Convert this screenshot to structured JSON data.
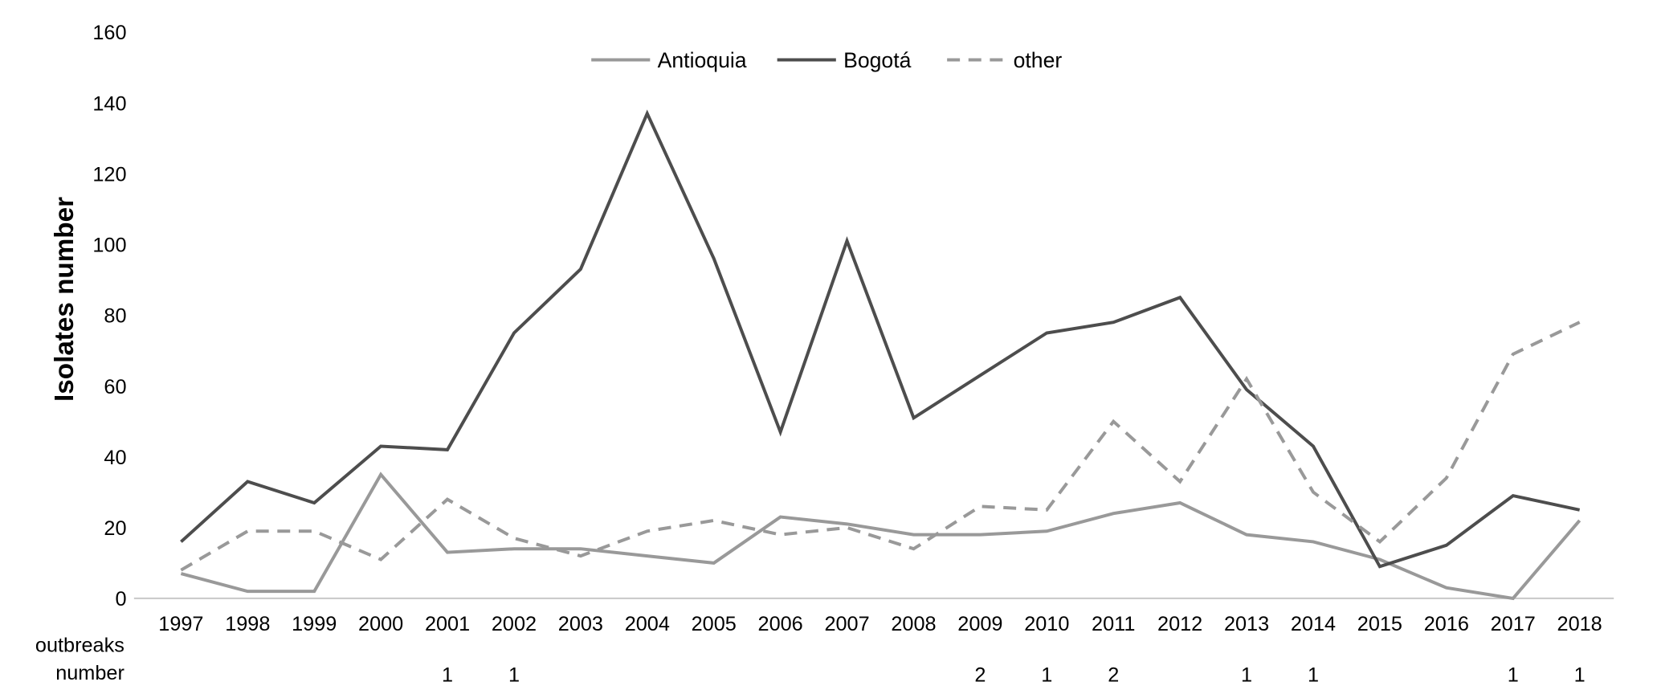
{
  "chart_data": {
    "type": "line",
    "title": "",
    "xlabel": "",
    "ylabel": "Isolates number",
    "ylim": [
      0,
      160
    ],
    "yticks": [
      0,
      20,
      40,
      60,
      80,
      100,
      120,
      140,
      160
    ],
    "grid": false,
    "legend_position": "top-center",
    "x": [
      "1997",
      "1998",
      "1999",
      "2000",
      "2001",
      "2002",
      "2003",
      "2004",
      "2005",
      "2006",
      "2007",
      "2008",
      "2009",
      "2010",
      "2011",
      "2012",
      "2013",
      "2014",
      "2015",
      "2016",
      "2017",
      "2018"
    ],
    "series": [
      {
        "name": "Antioquia",
        "color": "#999999",
        "dash": false,
        "values": [
          7,
          2,
          2,
          35,
          13,
          14,
          14,
          12,
          10,
          23,
          21,
          18,
          18,
          19,
          24,
          27,
          18,
          16,
          11,
          3,
          0,
          22
        ]
      },
      {
        "name": "Bogotá",
        "color": "#4d4d4d",
        "dash": false,
        "values": [
          16,
          33,
          27,
          43,
          42,
          75,
          93,
          137,
          96,
          47,
          101,
          51,
          63,
          75,
          78,
          85,
          59,
          43,
          9,
          15,
          29,
          25
        ]
      },
      {
        "name": "other",
        "color": "#999999",
        "dash": true,
        "values": [
          8,
          19,
          19,
          11,
          28,
          17,
          12,
          19,
          22,
          18,
          20,
          14,
          26,
          25,
          50,
          33,
          62,
          30,
          16,
          34,
          69,
          78
        ]
      }
    ],
    "outbreaks": {
      "label_line1": "outbreaks",
      "label_line2": "number",
      "values": [
        "",
        "",
        "",
        "",
        "1",
        "1",
        "",
        "",
        "",
        "",
        "",
        "",
        "2",
        "1",
        "2",
        "",
        "1",
        "1",
        "",
        "",
        "1",
        "1"
      ]
    }
  }
}
